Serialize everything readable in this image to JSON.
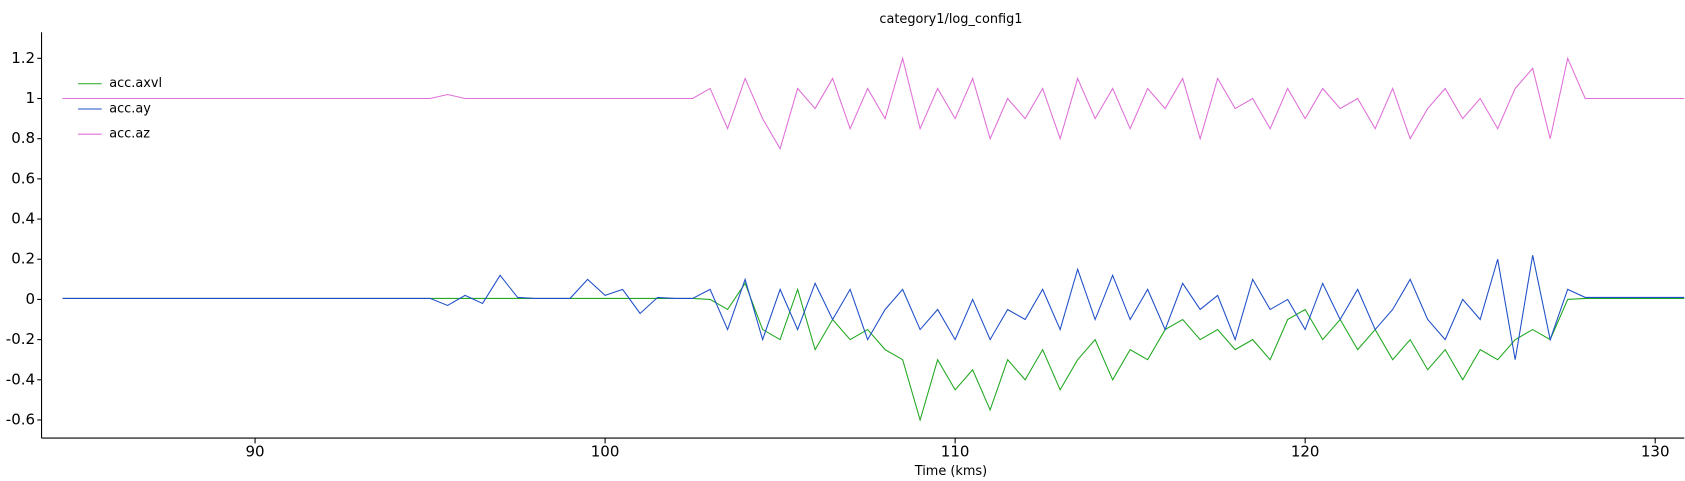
{
  "chart_data": {
    "type": "line",
    "title": "category1/log_config1",
    "x_label": "Time (kms)",
    "x": [
      84.5,
      85,
      85.5,
      86,
      86.5,
      87,
      87.5,
      88,
      88.5,
      89,
      89.5,
      90,
      90.5,
      91,
      91.5,
      92,
      92.5,
      93,
      93.5,
      94,
      94.5,
      95,
      95.5,
      96,
      96.5,
      97,
      97.5,
      98,
      98.5,
      99,
      99.5,
      100,
      100.5,
      101,
      101.5,
      102,
      102.5,
      103,
      103.5,
      104,
      104.5,
      105,
      105.5,
      106,
      106.5,
      107,
      107.5,
      108,
      108.5,
      109,
      109.5,
      110,
      110.5,
      111,
      111.5,
      112,
      112.5,
      113,
      113.5,
      114,
      114.5,
      115,
      115.5,
      116,
      116.5,
      117,
      117.5,
      118,
      118.5,
      119,
      119.5,
      120,
      120.5,
      121,
      121.5,
      122,
      122.5,
      123,
      123.5,
      124,
      124.5,
      125,
      125.5,
      126,
      126.5,
      127,
      127.5,
      128,
      128.5,
      129,
      129.5,
      130,
      130.5,
      131
    ],
    "series": [
      {
        "name": "acc.axvl",
        "color": "#22a822",
        "values": [
          0.005,
          0.005,
          0.005,
          0.005,
          0.005,
          0.005,
          0.005,
          0.005,
          0.005,
          0.005,
          0.005,
          0.005,
          0.005,
          0.005,
          0.005,
          0.005,
          0.005,
          0.005,
          0.005,
          0.005,
          0.005,
          0.005,
          0.005,
          0.005,
          0.005,
          0.005,
          0.005,
          0.005,
          0.005,
          0.005,
          0.005,
          0.005,
          0.005,
          0.005,
          0.005,
          0.005,
          0.005,
          0.0,
          -0.05,
          0.08,
          -0.15,
          -0.2,
          0.05,
          -0.25,
          -0.1,
          -0.2,
          -0.15,
          -0.25,
          -0.3,
          -0.6,
          -0.3,
          -0.45,
          -0.35,
          -0.55,
          -0.3,
          -0.4,
          -0.25,
          -0.45,
          -0.3,
          -0.2,
          -0.4,
          -0.25,
          -0.3,
          -0.15,
          -0.1,
          -0.2,
          -0.15,
          -0.25,
          -0.2,
          -0.3,
          -0.1,
          -0.05,
          -0.2,
          -0.1,
          -0.25,
          -0.15,
          -0.3,
          -0.2,
          -0.35,
          -0.25,
          -0.4,
          -0.25,
          -0.3,
          -0.2,
          -0.15,
          -0.2,
          0.0,
          0.005,
          0.005,
          0.005,
          0.005,
          0.005,
          0.005,
          0.005
        ]
      },
      {
        "name": "acc.ay",
        "color": "#1f4fc8",
        "values": [
          0.005,
          0.005,
          0.005,
          0.005,
          0.005,
          0.005,
          0.005,
          0.005,
          0.005,
          0.005,
          0.005,
          0.005,
          0.005,
          0.005,
          0.005,
          0.005,
          0.005,
          0.005,
          0.005,
          0.005,
          0.005,
          0.005,
          -0.03,
          0.02,
          -0.02,
          0.12,
          0.01,
          0.005,
          0.005,
          0.005,
          0.1,
          0.02,
          0.05,
          -0.07,
          0.01,
          0.005,
          0.005,
          0.05,
          -0.15,
          0.1,
          -0.2,
          0.05,
          -0.15,
          0.08,
          -0.1,
          0.05,
          -0.2,
          -0.05,
          0.05,
          -0.15,
          -0.05,
          -0.2,
          0.0,
          -0.2,
          -0.05,
          -0.1,
          0.05,
          -0.15,
          0.15,
          -0.1,
          0.12,
          -0.1,
          0.05,
          -0.15,
          0.08,
          -0.05,
          0.02,
          -0.2,
          0.1,
          -0.05,
          0.0,
          -0.15,
          0.08,
          -0.1,
          0.05,
          -0.15,
          -0.05,
          0.1,
          -0.1,
          -0.2,
          0.0,
          -0.1,
          0.2,
          -0.3,
          0.22,
          -0.2,
          0.05,
          0.01,
          0.01,
          0.01,
          0.01,
          0.01,
          0.01,
          0.01
        ]
      },
      {
        "name": "acc.az",
        "color": "#e070d8",
        "values": [
          1,
          1,
          1,
          1,
          1,
          1,
          1,
          1,
          1,
          1,
          1,
          1,
          1,
          1,
          1,
          1,
          1,
          1,
          1,
          1,
          1,
          1,
          1.02,
          1,
          1,
          1,
          1,
          1,
          1,
          1,
          1,
          1,
          1,
          1,
          1,
          1,
          1,
          1.05,
          0.85,
          1.1,
          0.9,
          0.75,
          1.05,
          0.95,
          1.1,
          0.85,
          1.05,
          0.9,
          1.2,
          0.85,
          1.05,
          0.9,
          1.1,
          0.8,
          1.0,
          0.9,
          1.05,
          0.8,
          1.1,
          0.9,
          1.05,
          0.85,
          1.05,
          0.95,
          1.1,
          0.8,
          1.1,
          0.95,
          1.0,
          0.85,
          1.05,
          0.9,
          1.05,
          0.95,
          1.0,
          0.85,
          1.05,
          0.8,
          0.95,
          1.05,
          0.9,
          1.0,
          0.85,
          1.05,
          1.15,
          0.8,
          1.2,
          1,
          1,
          1,
          1,
          1,
          1,
          1
        ]
      }
    ],
    "xlim": [
      83.9,
      130.83
    ],
    "ylim": [
      -0.69,
      1.33
    ],
    "xticks": [
      90,
      100,
      110,
      120,
      130
    ],
    "yticks": [
      -0.6,
      -0.4,
      -0.2,
      0,
      0.2,
      0.4,
      0.6,
      0.8,
      1,
      1.2
    ],
    "legend": "upper-left"
  }
}
